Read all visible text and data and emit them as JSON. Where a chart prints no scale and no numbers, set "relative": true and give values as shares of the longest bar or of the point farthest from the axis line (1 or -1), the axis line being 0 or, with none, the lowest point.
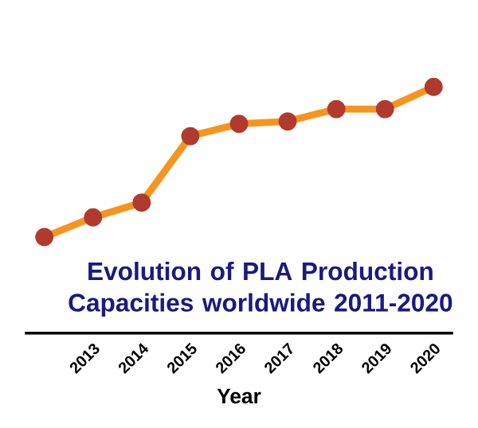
{
  "chart_data": {
    "type": "line",
    "title": "Evolution of PLA Production Capacities worldwide 2011-2020",
    "xlabel": "Year",
    "categories": [
      null,
      "2013",
      "2014",
      "2015",
      "2016",
      "2017",
      "2018",
      "2019",
      "2020"
    ],
    "relative": true,
    "marker": "circle",
    "line_style": "solid",
    "series": [
      {
        "color": "#f7941d",
        "values": [
          0.39,
          0.47,
          0.53,
          0.8,
          0.85,
          0.86,
          0.91,
          0.91,
          1
        ]
      }
    ]
  }
}
